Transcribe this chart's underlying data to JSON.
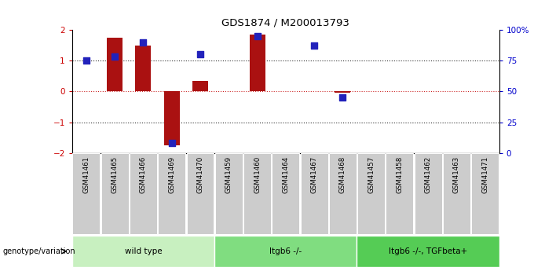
{
  "title": "GDS1874 / M200013793",
  "samples": [
    "GSM41461",
    "GSM41465",
    "GSM41466",
    "GSM41469",
    "GSM41470",
    "GSM41459",
    "GSM41460",
    "GSM41464",
    "GSM41467",
    "GSM41468",
    "GSM41457",
    "GSM41458",
    "GSM41462",
    "GSM41463",
    "GSM41471"
  ],
  "log_ratio": [
    0.0,
    1.75,
    1.5,
    -1.75,
    0.35,
    0.0,
    1.85,
    0.0,
    0.0,
    -0.05,
    0.0,
    0.0,
    0.0,
    0.0,
    0.0
  ],
  "percentile_rank": [
    75.0,
    78.0,
    90.0,
    8.0,
    80.0,
    null,
    95.0,
    null,
    87.0,
    45.0,
    null,
    null,
    null,
    null,
    null
  ],
  "groups": [
    {
      "label": "wild type",
      "start": 0,
      "end": 5,
      "color": "#c8f0c0"
    },
    {
      "label": "Itgb6 -/-",
      "start": 5,
      "end": 10,
      "color": "#80dd80"
    },
    {
      "label": "Itgb6 -/-, TGFbeta+",
      "start": 10,
      "end": 15,
      "color": "#55cc55"
    }
  ],
  "ylim_left": [
    -2,
    2
  ],
  "ylim_right": [
    0,
    100
  ],
  "bar_color": "#aa1111",
  "dot_color": "#2222bb",
  "hline_color": "#cc2222",
  "dotted_color": "#333333",
  "background_color": "#ffffff",
  "bar_width": 0.55,
  "dot_size": 28,
  "sample_box_color": "#cccccc",
  "left_ytick_color": "#cc0000",
  "right_ytick_color": "#0000cc"
}
